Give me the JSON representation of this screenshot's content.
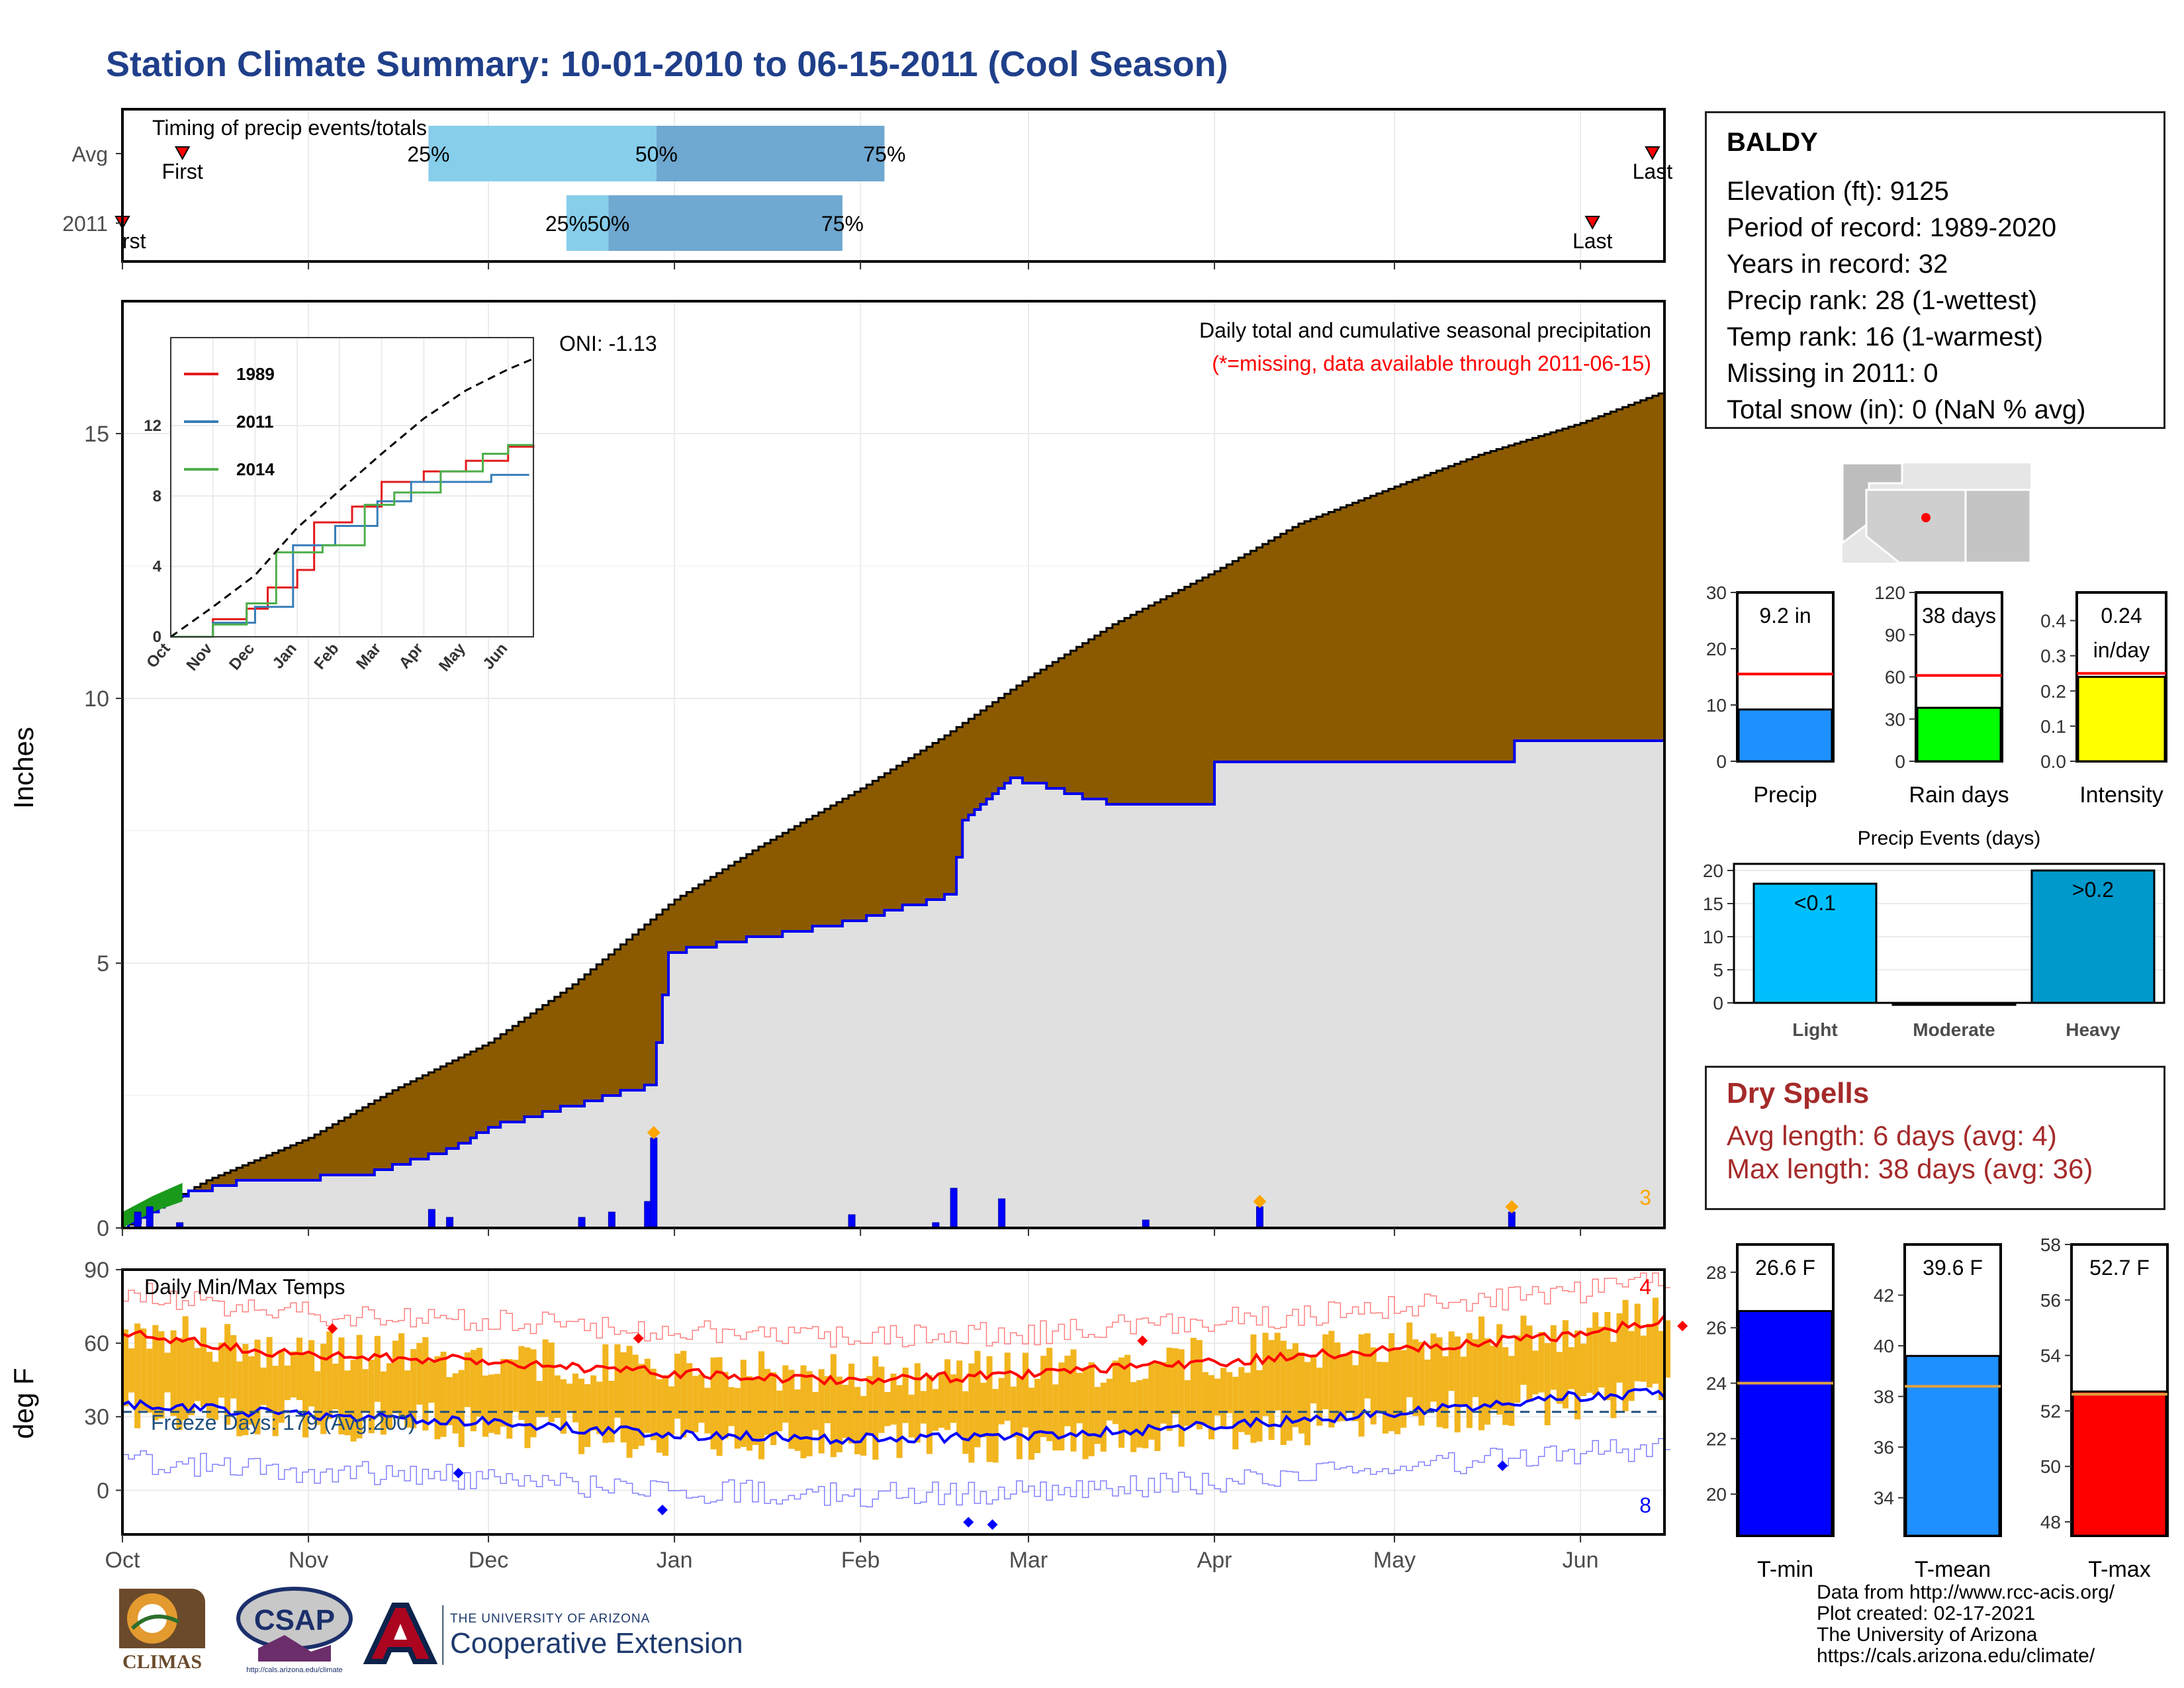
{
  "page": {
    "title": "Station Climate Summary: 10-01-2010 to 06-15-2011 (Cool Season)"
  },
  "station": {
    "name": "BALDY",
    "lines": [
      "Elevation (ft): 9125",
      "Period of record: 1989-2020",
      "Years in record: 32",
      "Precip rank: 28 (1-wettest)",
      "Temp rank: 16 (1-warmest)",
      "Missing in 2011: 0",
      "Total snow (in): 0 (NaN % avg)"
    ]
  },
  "dry_spells": {
    "title": "Dry Spells",
    "avg": "Avg length: 6 days (avg: 4)",
    "max": "Max length: 38 days (avg: 36)"
  },
  "credits": [
    "Data from http://www.rcc-acis.org/",
    "Plot created: 02-17-2021",
    "The University of Arizona",
    "https://cals.arizona.edu/climate/"
  ],
  "logos": {
    "climas": "CLIMAS",
    "csap": "CSAP",
    "csap_url": "http://cals.arizona.edu/climate",
    "coop_small": "THE UNIVERSITY OF ARIZONA",
    "coop_big": "Cooperative Extension"
  },
  "colors": {
    "title": "#1f3f8a",
    "precip_fill": "#8b5a00",
    "avg_fill": "#e0e0e0",
    "avg_line": "#0000ee",
    "timing_light": "#87ceeb",
    "timing_dark": "#6fa8d0",
    "tmax": "#ff0000",
    "tmin": "#0000ff",
    "temp_bars": "#f2b51f",
    "dry": "#a52a2a"
  },
  "chart_data": [
    {
      "id": "timing",
      "type": "bar",
      "title": "Timing of precip events/totals",
      "categories": [
        "Avg",
        "2011"
      ],
      "x_axis": "date (Oct 1 - Jun 15)",
      "rows": [
        {
          "label": "Avg",
          "p25": "2010-11-21",
          "p50": "2010-12-29",
          "p75": "2011-02-05",
          "first": "2010-10-11",
          "last": "2011-06-13"
        },
        {
          "label": "2011",
          "p25": "2010-12-14",
          "p50": "2010-12-21",
          "p75": "2011-01-29",
          "first": "2010-10-01",
          "last": "2011-06-03"
        }
      ],
      "marker_labels": {
        "p25": "25%",
        "p50": "50%",
        "p75": "75%",
        "first": "First",
        "first_clipped": "rst",
        "last": "Last"
      }
    },
    {
      "id": "precip",
      "type": "area",
      "ylabel": "Inches",
      "ylim": [
        0,
        17.5
      ],
      "yticks": [
        0,
        5,
        10,
        15
      ],
      "xticks": [
        "Oct",
        "Nov",
        "Dec",
        "Jan",
        "Feb",
        "Mar",
        "Apr",
        "May",
        "Jun"
      ],
      "title": "Daily total and cumulative seasonal precipitation",
      "subtitle": "(*=missing, data available through 2011-06-15)",
      "corner_label": "3",
      "series": [
        {
          "name": "avg_cumulative",
          "points": [
            [
              "2010-10-01",
              0.0
            ],
            [
              "2010-10-15",
              0.9
            ],
            [
              "2010-11-01",
              1.7
            ],
            [
              "2010-11-15",
              2.6
            ],
            [
              "2010-12-01",
              3.5
            ],
            [
              "2010-12-15",
              4.6
            ],
            [
              "2011-01-01",
              6.2
            ],
            [
              "2011-01-15",
              7.2
            ],
            [
              "2011-02-01",
              8.3
            ],
            [
              "2011-02-15",
              9.3
            ],
            [
              "2011-03-01",
              10.4
            ],
            [
              "2011-03-15",
              11.4
            ],
            [
              "2011-04-01",
              12.4
            ],
            [
              "2011-04-15",
              13.3
            ],
            [
              "2011-05-01",
              14.0
            ],
            [
              "2011-05-15",
              14.6
            ],
            [
              "2011-06-01",
              15.2
            ],
            [
              "2011-06-15",
              15.8
            ]
          ]
        },
        {
          "name": "cumulative_2011",
          "points": [
            [
              "2010-10-01",
              0.0
            ],
            [
              "2010-10-10",
              0.6
            ],
            [
              "2010-10-20",
              0.85
            ],
            [
              "2010-11-10",
              1.0
            ],
            [
              "2010-11-25",
              1.5
            ],
            [
              "2010-12-01",
              1.9
            ],
            [
              "2010-12-28",
              2.7
            ],
            [
              "2010-12-31",
              5.2
            ],
            [
              "2011-01-31",
              5.8
            ],
            [
              "2011-02-16",
              6.3
            ],
            [
              "2011-02-18",
              7.7
            ],
            [
              "2011-02-26",
              8.5
            ],
            [
              "2011-03-15",
              8.0
            ],
            [
              "2011-03-31",
              8.0
            ],
            [
              "2011-04-01",
              8.8
            ],
            [
              "2011-05-20",
              8.8
            ],
            [
              "2011-05-21",
              9.2
            ],
            [
              "2011-06-15",
              9.2
            ]
          ]
        },
        {
          "name": "daily_2011",
          "points": [
            [
              "2010-10-03",
              0.3
            ],
            [
              "2010-10-05",
              0.4
            ],
            [
              "2010-10-10",
              0.1
            ],
            [
              "2010-11-21",
              0.35
            ],
            [
              "2010-11-24",
              0.2
            ],
            [
              "2010-12-16",
              0.2
            ],
            [
              "2010-12-21",
              0.3
            ],
            [
              "2010-12-27",
              0.5
            ],
            [
              "2010-12-28",
              1.7
            ],
            [
              "2011-01-30",
              0.25
            ],
            [
              "2011-02-13",
              0.1
            ],
            [
              "2011-02-16",
              0.75
            ],
            [
              "2011-02-24",
              0.55
            ],
            [
              "2011-03-20",
              0.15
            ],
            [
              "2011-04-08",
              0.4
            ],
            [
              "2011-05-20",
              0.3
            ]
          ]
        }
      ]
    },
    {
      "id": "cumulative_inset",
      "type": "line",
      "ylim": [
        0,
        17
      ],
      "yticks": [
        0,
        4,
        8,
        12
      ],
      "xticks": [
        "Oct",
        "Nov",
        "Dec",
        "Jan",
        "Feb",
        "Mar",
        "Apr",
        "May",
        "Jun"
      ],
      "annotation": "ONI: -1.13",
      "series": [
        {
          "name": "1989",
          "color": "#e31a1c",
          "points": [
            [
              0,
              0
            ],
            [
              1,
              1.0
            ],
            [
              1.8,
              1.6
            ],
            [
              2.3,
              2.8
            ],
            [
              3.0,
              3.8
            ],
            [
              3.4,
              6.5
            ],
            [
              4.3,
              7.4
            ],
            [
              5.0,
              8.8
            ],
            [
              6.0,
              9.4
            ],
            [
              7.0,
              10.0
            ],
            [
              8.0,
              10.8
            ],
            [
              8.6,
              10.9
            ]
          ]
        },
        {
          "name": "2011",
          "color": "#377eb8",
          "points": [
            [
              0,
              0
            ],
            [
              1,
              0.8
            ],
            [
              2,
              1.7
            ],
            [
              2.9,
              5.2
            ],
            [
              3.9,
              6.3
            ],
            [
              4.9,
              7.7
            ],
            [
              5.7,
              8.8
            ],
            [
              7.2,
              8.8
            ],
            [
              7.6,
              9.2
            ],
            [
              8.5,
              9.2
            ]
          ]
        },
        {
          "name": "2014",
          "color": "#4daf4a",
          "points": [
            [
              0,
              0
            ],
            [
              1,
              0.7
            ],
            [
              1.8,
              1.9
            ],
            [
              2.5,
              4.8
            ],
            [
              3.6,
              5.2
            ],
            [
              4.6,
              7.5
            ],
            [
              5.3,
              8.2
            ],
            [
              6.4,
              9.4
            ],
            [
              7.4,
              10.4
            ],
            [
              8.0,
              10.9
            ],
            [
              8.6,
              10.9
            ]
          ]
        },
        {
          "name": "avg",
          "color": "#000000",
          "dashed": true,
          "points": [
            [
              0,
              0
            ],
            [
              1,
              1.7
            ],
            [
              2,
              3.5
            ],
            [
              3,
              6.2
            ],
            [
              4,
              8.3
            ],
            [
              5,
              10.4
            ],
            [
              6,
              12.4
            ],
            [
              7,
              14.0
            ],
            [
              8,
              15.2
            ],
            [
              8.6,
              15.8
            ]
          ]
        }
      ]
    },
    {
      "id": "temps",
      "type": "bar",
      "title": "Daily Min/Max Temps",
      "ylabel": "deg F",
      "ylim": [
        -18,
        90
      ],
      "yticks": [
        0,
        30,
        60,
        90
      ],
      "xticks": [
        "Oct",
        "Nov",
        "Dec",
        "Jan",
        "Feb",
        "Mar",
        "Apr",
        "May",
        "Jun"
      ],
      "freeze_label": "Freeze Days: 179 (Avg:200)",
      "freeze_line": 32,
      "record_max_count": "4",
      "record_min_count": "8",
      "avg_tmax_curve": [
        [
          0,
          64
        ],
        [
          30,
          55
        ],
        [
          60,
          53
        ],
        [
          90,
          48
        ],
        [
          120,
          45
        ],
        [
          150,
          47
        ],
        [
          180,
          52
        ],
        [
          210,
          57
        ],
        [
          240,
          63
        ],
        [
          258,
          70
        ]
      ],
      "avg_tmin_curve": [
        [
          0,
          35
        ],
        [
          30,
          31
        ],
        [
          60,
          28
        ],
        [
          90,
          23
        ],
        [
          120,
          21
        ],
        [
          150,
          22
        ],
        [
          180,
          26
        ],
        [
          210,
          31
        ],
        [
          240,
          38
        ],
        [
          258,
          40
        ]
      ]
    },
    {
      "id": "precip_bars",
      "type": "bar",
      "categories": [
        "Precip",
        "Rain days",
        "Intensity"
      ],
      "values": [
        9.2,
        38,
        0.24
      ],
      "labels": [
        "9.2 in",
        "38 days",
        "0.24 in/day"
      ],
      "averages": [
        15.5,
        61,
        0.25
      ],
      "ylims": [
        [
          0,
          30
        ],
        [
          0,
          120
        ],
        [
          0,
          0.48
        ]
      ],
      "yticks": [
        [
          0,
          10,
          20,
          30
        ],
        [
          0,
          30,
          60,
          90,
          120
        ],
        [
          0.0,
          0.1,
          0.2,
          0.3,
          0.4
        ]
      ]
    },
    {
      "id": "events",
      "type": "bar",
      "title": "Precip Events (days)",
      "categories": [
        "Light",
        "Moderate",
        "Heavy"
      ],
      "values": [
        18,
        0,
        20
      ],
      "labels": [
        "<0.1",
        "",
        ">0.2"
      ],
      "ylim": [
        0,
        21
      ],
      "yticks": [
        0,
        5,
        10,
        15,
        20
      ]
    },
    {
      "id": "temp_bars",
      "type": "bar",
      "categories": [
        "T-min",
        "T-mean",
        "T-max"
      ],
      "values": [
        26.6,
        39.6,
        52.7
      ],
      "labels": [
        "26.6 F",
        "39.6 F",
        "52.7 F"
      ],
      "averages": [
        24.0,
        38.4,
        52.6
      ],
      "ylims": [
        [
          18.5,
          29
        ],
        [
          32.5,
          44
        ],
        [
          47.5,
          58
        ]
      ],
      "yticks": [
        [
          20,
          22,
          24,
          26,
          28
        ],
        [
          34,
          36,
          38,
          40,
          42
        ],
        [
          48,
          50,
          52,
          54,
          56,
          58
        ]
      ]
    }
  ]
}
